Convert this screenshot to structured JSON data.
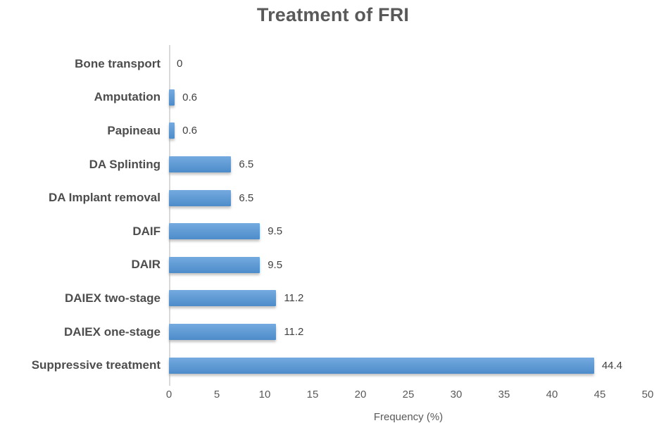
{
  "chart_data": {
    "type": "bar",
    "orientation": "horizontal",
    "title": "Treatment of FRI",
    "xlabel": "Frequency (%)",
    "ylabel": "",
    "categories": [
      "Bone transport",
      "Amputation",
      "Papineau",
      "DA Splinting",
      "DA Implant removal",
      "DAIF",
      "DAIR",
      "DAIEX two-stage",
      "DAIEX one-stage",
      "Suppressive treatment"
    ],
    "values": [
      0,
      0.6,
      0.6,
      6.5,
      6.5,
      9.5,
      9.5,
      11.2,
      11.2,
      44.4
    ],
    "value_labels": [
      "0",
      "0.6",
      "0.6",
      "6.5",
      "6.5",
      "9.5",
      "9.5",
      "11.2",
      "11.2",
      "44.4"
    ],
    "xlim": [
      0,
      50
    ],
    "xticks": [
      "0",
      "5",
      "10",
      "15",
      "20",
      "25",
      "30",
      "35",
      "40",
      "45",
      "50"
    ],
    "grid": false,
    "legend": false,
    "colors": {
      "bar_gradient_top": "#74aadf",
      "bar_gradient_bottom": "#4d8cca",
      "title_text": "#595959",
      "category_text": "#4d4d4d",
      "value_text": "#404040",
      "tick_text": "#595959",
      "axis_line": "#d9d9d9"
    }
  }
}
